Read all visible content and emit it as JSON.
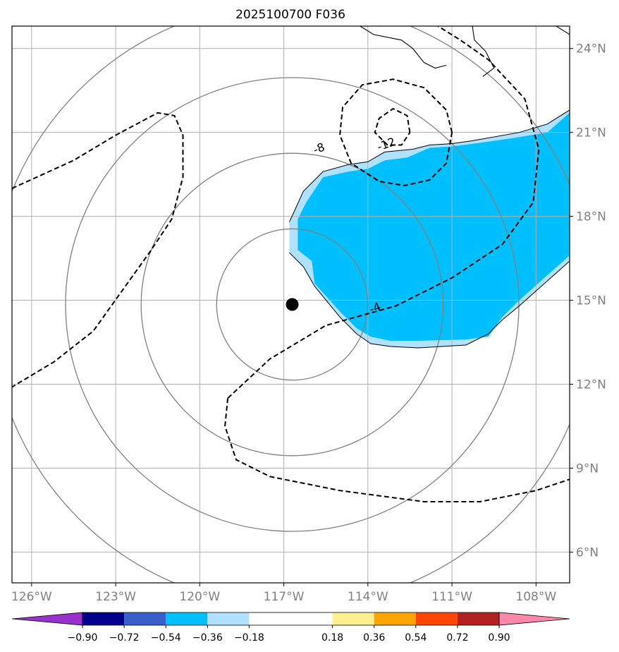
{
  "chart_data": {
    "type": "map",
    "title": "2025100700 F036",
    "lon_range": [
      -126.7,
      -106.8
    ],
    "lat_range": [
      4.9,
      24.8
    ],
    "lon_ticks": [
      {
        "value": -126,
        "label": "126°W"
      },
      {
        "value": -123,
        "label": "123°W"
      },
      {
        "value": -120,
        "label": "120°W"
      },
      {
        "value": -117,
        "label": "117°W"
      },
      {
        "value": -114,
        "label": "114°W"
      },
      {
        "value": -111,
        "label": "111°W"
      },
      {
        "value": -108,
        "label": "108°W"
      }
    ],
    "lat_ticks": [
      {
        "value": 6,
        "label": "6°N"
      },
      {
        "value": 9,
        "label": "9°N"
      },
      {
        "value": 12,
        "label": "12°N"
      },
      {
        "value": 15,
        "label": "15°N"
      },
      {
        "value": 18,
        "label": "18°N"
      },
      {
        "value": 21,
        "label": "21°N"
      },
      {
        "value": 24,
        "label": "24°N"
      }
    ],
    "center_marker": {
      "lon": -116.7,
      "lat": 14.85
    },
    "range_rings_km": [
      300,
      600,
      900,
      1200
    ],
    "contour_labels": [
      {
        "text": "-8",
        "lon": -115.7,
        "lat": 20.3
      },
      {
        "text": "-12",
        "lon": -113.3,
        "lat": 20.45
      },
      {
        "text": "-4",
        "lon": -113.7,
        "lat": 14.6
      }
    ],
    "colorbar": {
      "boundaries": [
        -0.9,
        -0.72,
        -0.54,
        -0.36,
        -0.18,
        0.18,
        0.36,
        0.54,
        0.72,
        0.9
      ],
      "labels": [
        "−0.90",
        "−0.72",
        "−0.54",
        "−0.36",
        "−0.18",
        "0.18",
        "0.36",
        "0.54",
        "0.72",
        "0.90"
      ],
      "colors": [
        "#9932cc",
        "#00008b",
        "#3a5fcd",
        "#00bfff",
        "#b0e2ff",
        "#ffffff",
        "#fff08f",
        "#ffa500",
        "#ff4500",
        "#b22222",
        "#ff88aa"
      ]
    },
    "shaded_region_colors": {
      "outer": "#b0e2ff",
      "inner": "#00bfff"
    }
  }
}
